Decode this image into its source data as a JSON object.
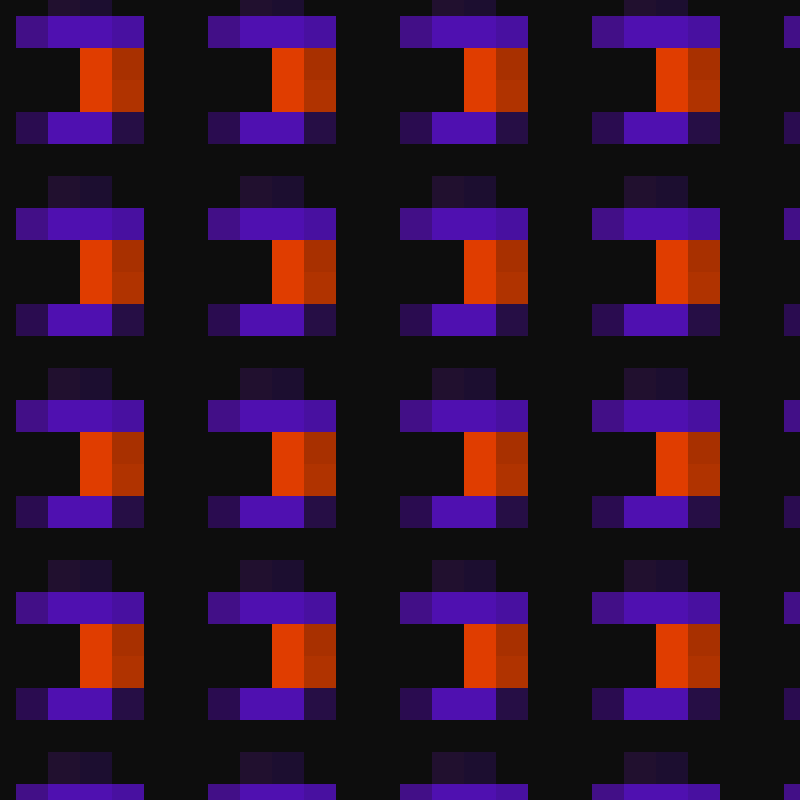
{
  "background": "#0d0d0d",
  "pattern": {
    "name": "repeating-bracket-glyph",
    "cells": [
      {
        "col": 1,
        "row": -0.5,
        "color": "#21102f"
      },
      {
        "col": 2,
        "row": -0.5,
        "color": "#1c0e30"
      },
      {
        "col": 0,
        "row": 0.5,
        "color": "#420f87"
      },
      {
        "col": 1,
        "row": 0.5,
        "color": "#4f10b0"
      },
      {
        "col": 2,
        "row": 0.5,
        "color": "#4f10b0"
      },
      {
        "col": 3,
        "row": 0.5,
        "color": "#4810a0"
      },
      {
        "col": 2,
        "row": 1.5,
        "color": "#e03d00"
      },
      {
        "col": 3,
        "row": 1.5,
        "color": "#a83000"
      },
      {
        "col": 2,
        "row": 2.5,
        "color": "#e03d00"
      },
      {
        "col": 3,
        "row": 2.5,
        "color": "#b03300"
      },
      {
        "col": 0,
        "row": 3.5,
        "color": "#2a0c50"
      },
      {
        "col": 1,
        "row": 3.5,
        "color": "#4f10b0"
      },
      {
        "col": 2,
        "row": 3.5,
        "color": "#4f10b0"
      },
      {
        "col": 3,
        "row": 3.5,
        "color": "#260e45"
      }
    ]
  }
}
